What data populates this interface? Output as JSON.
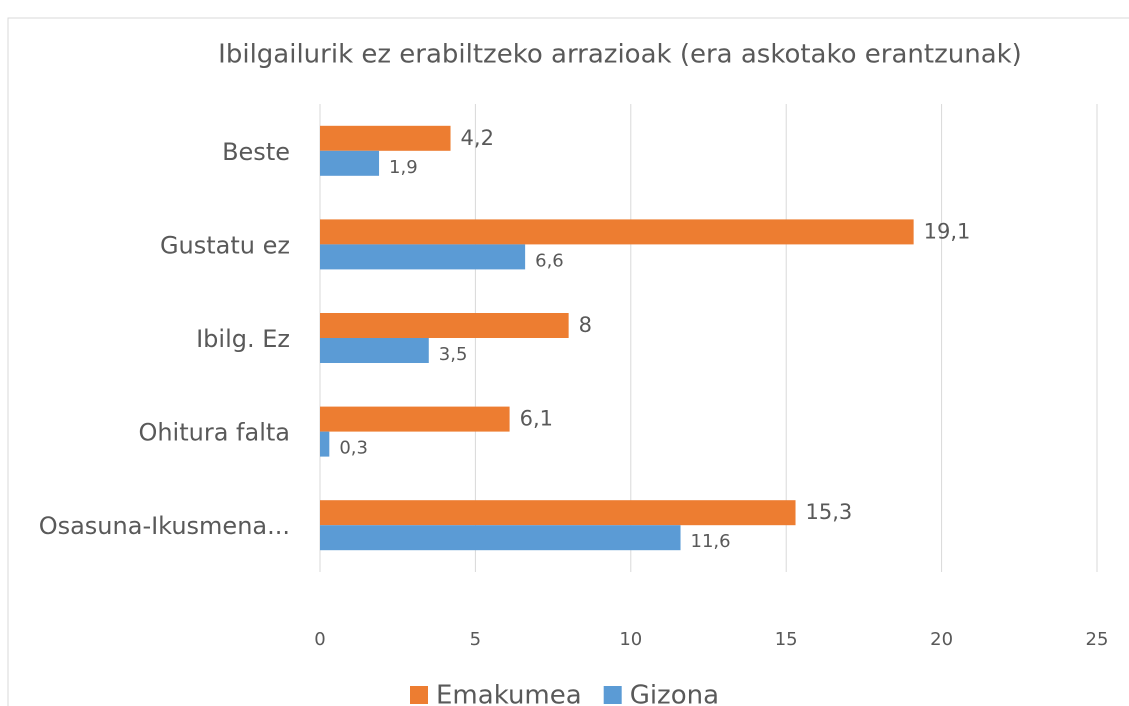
{
  "chart_data": {
    "type": "hbar",
    "title": "Ibilgailurik ez erabiltzeko arrazioak (era askotako erantzunak)",
    "categories": [
      "Beste",
      "Gustatu ez",
      "Ibilg. Ez",
      "Ohitura falta",
      "Osasuna-Ikusmena..."
    ],
    "series": [
      {
        "name": "Emakumea",
        "color": "#ed7d31",
        "values": [
          4.2,
          19.1,
          8,
          6.1,
          15.3
        ],
        "value_labels": [
          "4,2",
          "19,1",
          "8",
          "6,1",
          "15,3"
        ]
      },
      {
        "name": "Gizona",
        "color": "#5b9bd5",
        "values": [
          1.9,
          6.6,
          3.5,
          0.3,
          11.6
        ],
        "value_labels": [
          "1,9",
          "6,6",
          "3,5",
          "0,3",
          "11,6"
        ]
      }
    ],
    "xlim": [
      0,
      25
    ],
    "xticks": [
      0,
      5,
      10,
      15,
      20,
      25
    ],
    "grid": true,
    "legend": "bottom"
  }
}
